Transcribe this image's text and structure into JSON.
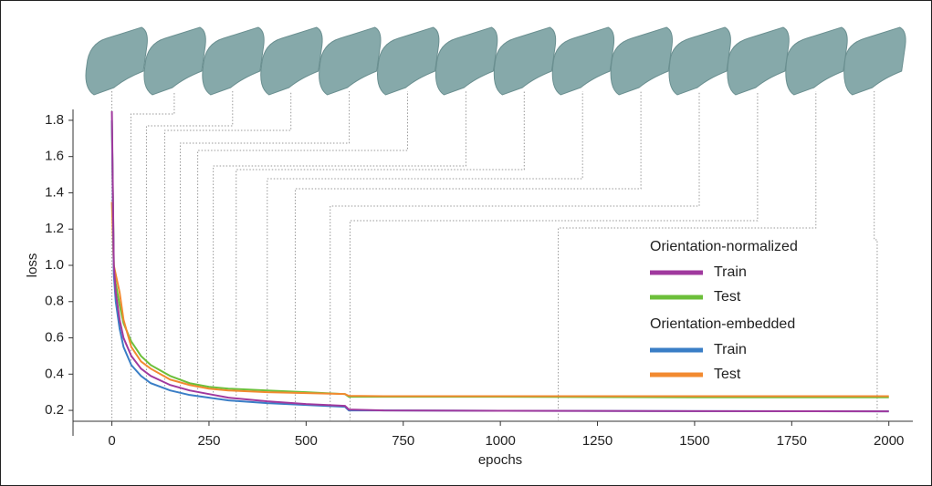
{
  "chart_data": {
    "type": "line",
    "xlabel": "epochs",
    "ylabel": "loss",
    "xlim": [
      -100,
      2050
    ],
    "ylim": [
      0.14,
      1.86
    ],
    "xticks": [
      0,
      250,
      500,
      750,
      1000,
      1250,
      1500,
      1750,
      2000
    ],
    "yticks": [
      0.2,
      0.4,
      0.6,
      0.8,
      {
        "value": 1,
        "label": "1.0"
      },
      1.2,
      1.4,
      1.6,
      1.8
    ],
    "x": [
      0,
      5,
      10,
      20,
      30,
      50,
      75,
      100,
      150,
      200,
      250,
      300,
      400,
      500,
      600,
      610,
      700,
      1000,
      1500,
      2000
    ],
    "snapshot_epochs": [
      0,
      49,
      89,
      136,
      176,
      221,
      261,
      320,
      400,
      472,
      562,
      613,
      1149,
      1970
    ],
    "groups": [
      {
        "title": "Orientation-normalized",
        "series": [
          {
            "name": "Train",
            "color": "#a0399e",
            "values": [
              1.85,
              1.0,
              0.85,
              0.7,
              0.6,
              0.5,
              0.43,
              0.39,
              0.34,
              0.31,
              0.29,
              0.27,
              0.25,
              0.235,
              0.225,
              0.205,
              0.2,
              0.198,
              0.196,
              0.195
            ]
          },
          {
            "name": "Test",
            "color": "#6cbf3a",
            "values": [
              1.8,
              1.0,
              0.9,
              0.78,
              0.68,
              0.58,
              0.5,
              0.45,
              0.39,
              0.35,
              0.33,
              0.32,
              0.31,
              0.3,
              0.29,
              0.275,
              0.275,
              0.275,
              0.272,
              0.272
            ]
          }
        ]
      },
      {
        "title": "Orientation-embedded",
        "series": [
          {
            "name": "Train",
            "color": "#3a7ec6",
            "values": [
              1.8,
              0.95,
              0.8,
              0.65,
              0.55,
              0.45,
              0.39,
              0.35,
              0.31,
              0.285,
              0.27,
              0.255,
              0.24,
              0.23,
              0.22,
              0.2,
              0.2,
              0.198,
              0.196,
              0.195
            ]
          },
          {
            "name": "Test",
            "color": "#f28a30",
            "values": [
              1.35,
              1.0,
              0.95,
              0.85,
              0.7,
              0.55,
              0.47,
              0.43,
              0.37,
              0.34,
              0.32,
              0.31,
              0.3,
              0.295,
              0.29,
              0.28,
              0.278,
              0.278,
              0.278,
              0.278
            ]
          }
        ]
      }
    ]
  }
}
